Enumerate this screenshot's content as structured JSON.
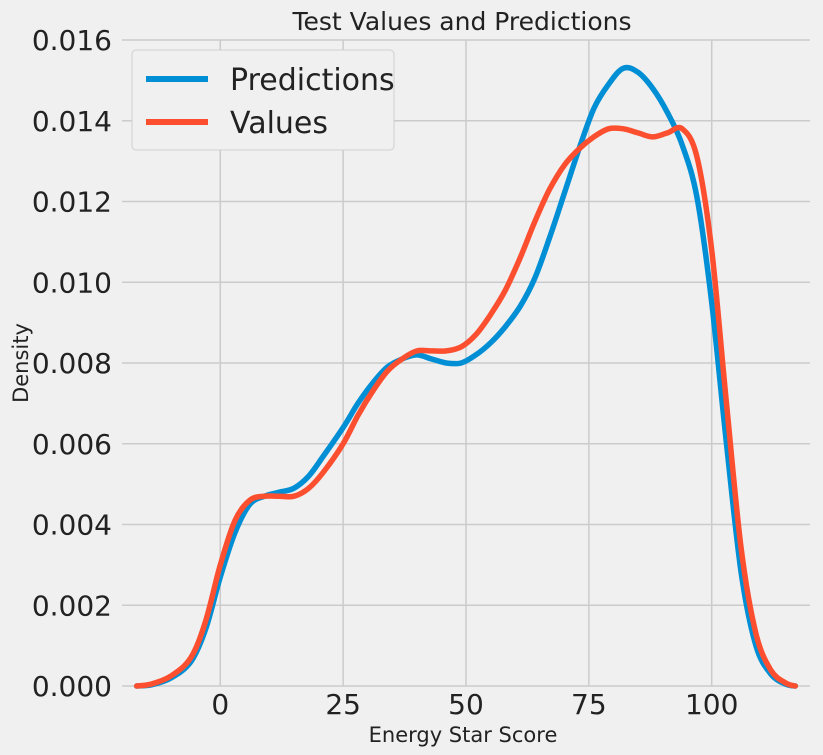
{
  "chart_data": {
    "type": "line",
    "title": "Test Values and Predictions",
    "xlabel": "Energy Star Score",
    "ylabel": "Density",
    "xlim": [
      -20,
      120
    ],
    "ylim": [
      0,
      0.016
    ],
    "x_ticks": [
      0,
      25,
      50,
      75,
      100
    ],
    "x_tick_labels": [
      "0",
      "25",
      "50",
      "75",
      "100"
    ],
    "y_ticks": [
      0,
      0.002,
      0.004,
      0.006,
      0.008,
      0.01,
      0.012,
      0.014,
      0.016
    ],
    "y_tick_labels": [
      "0.000",
      "0.002",
      "0.004",
      "0.006",
      "0.008",
      "0.010",
      "0.012",
      "0.014",
      "0.016"
    ],
    "grid": true,
    "legend_position": "top-left",
    "series": [
      {
        "name": "Predictions",
        "color": "#008fd5",
        "points": [
          [
            -17,
            0
          ],
          [
            -14,
            3e-05
          ],
          [
            -10,
            0.0002
          ],
          [
            -6,
            0.0006
          ],
          [
            -3,
            0.0014
          ],
          [
            0,
            0.0027
          ],
          [
            3,
            0.0038
          ],
          [
            6,
            0.0045
          ],
          [
            9,
            0.0047
          ],
          [
            12,
            0.0048
          ],
          [
            15,
            0.0049
          ],
          [
            18,
            0.0052
          ],
          [
            21,
            0.0057
          ],
          [
            25,
            0.0064
          ],
          [
            28,
            0.007
          ],
          [
            31,
            0.0075
          ],
          [
            34,
            0.0079
          ],
          [
            37,
            0.0081
          ],
          [
            40,
            0.0082
          ],
          [
            43,
            0.0081
          ],
          [
            46,
            0.008
          ],
          [
            49,
            0.008
          ],
          [
            52,
            0.0082
          ],
          [
            55,
            0.0085
          ],
          [
            58,
            0.0089
          ],
          [
            61,
            0.0094
          ],
          [
            64,
            0.0101
          ],
          [
            67,
            0.0111
          ],
          [
            70,
            0.0122
          ],
          [
            73,
            0.0133
          ],
          [
            76,
            0.0143
          ],
          [
            79,
            0.0149
          ],
          [
            82,
            0.0153
          ],
          [
            85,
            0.0152
          ],
          [
            88,
            0.0148
          ],
          [
            91,
            0.0142
          ],
          [
            94,
            0.0134
          ],
          [
            97,
            0.0121
          ],
          [
            100,
            0.0095
          ],
          [
            103,
            0.006
          ],
          [
            106,
            0.0028
          ],
          [
            109,
            0.001
          ],
          [
            112,
            0.0003
          ],
          [
            115,
            5e-05
          ],
          [
            117,
            0
          ]
        ]
      },
      {
        "name": "Values",
        "color": "#fc4f30",
        "points": [
          [
            -17,
            0
          ],
          [
            -14,
            5e-05
          ],
          [
            -10,
            0.00025
          ],
          [
            -6,
            0.0007
          ],
          [
            -3,
            0.0016
          ],
          [
            0,
            0.003
          ],
          [
            3,
            0.0041
          ],
          [
            6,
            0.0046
          ],
          [
            9,
            0.0047
          ],
          [
            12,
            0.0047
          ],
          [
            15,
            0.0047
          ],
          [
            18,
            0.0049
          ],
          [
            21,
            0.0053
          ],
          [
            25,
            0.006
          ],
          [
            28,
            0.0067
          ],
          [
            31,
            0.0073
          ],
          [
            34,
            0.0078
          ],
          [
            37,
            0.0081
          ],
          [
            40,
            0.0083
          ],
          [
            43,
            0.0083
          ],
          [
            46,
            0.0083
          ],
          [
            49,
            0.0084
          ],
          [
            52,
            0.0087
          ],
          [
            55,
            0.0092
          ],
          [
            58,
            0.0098
          ],
          [
            61,
            0.0106
          ],
          [
            64,
            0.0115
          ],
          [
            67,
            0.0123
          ],
          [
            70,
            0.0129
          ],
          [
            73,
            0.0133
          ],
          [
            76,
            0.0136
          ],
          [
            79,
            0.0138
          ],
          [
            82,
            0.0138
          ],
          [
            85,
            0.0137
          ],
          [
            88,
            0.0136
          ],
          [
            91,
            0.0137
          ],
          [
            94,
            0.0138
          ],
          [
            97,
            0.0131
          ],
          [
            100,
            0.0108
          ],
          [
            103,
            0.007
          ],
          [
            106,
            0.0034
          ],
          [
            109,
            0.0013
          ],
          [
            112,
            0.0004
          ],
          [
            115,
            8e-05
          ],
          [
            117,
            0
          ]
        ]
      }
    ]
  }
}
